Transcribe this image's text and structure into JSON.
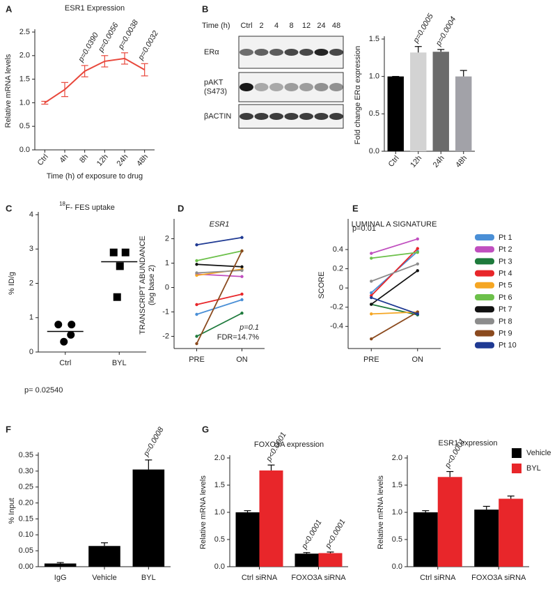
{
  "blot": {
    "panel": "B",
    "time_label": "Time (h)",
    "lanes": [
      "Ctrl",
      "2",
      "4",
      "8",
      "12",
      "24",
      "48"
    ],
    "rows": [
      [
        "ERα"
      ],
      [
        "pAKT",
        "(S473)"
      ],
      [
        "βACTIN"
      ]
    ]
  },
  "chart_data": [
    {
      "panel": "A",
      "type": "line",
      "title": "ESR1 Expression",
      "x_label": "Time (h) of exposure to drug",
      "y_label": "Relative mRNA levels",
      "categories": [
        "Ctrl",
        "4h",
        "8h",
        "12h",
        "24h",
        "48h"
      ],
      "values": [
        1.0,
        1.28,
        1.67,
        1.88,
        1.94,
        1.7
      ],
      "errors": [
        0.03,
        0.15,
        0.12,
        0.12,
        0.12,
        0.13
      ],
      "annotations": [
        null,
        null,
        "p=0.0390",
        "p=0.0056",
        "p=0.0038",
        "p=0.0032"
      ],
      "color": "#e8473b",
      "ylim": [
        0,
        2.5
      ],
      "yticks": [
        {
          "value": 0,
          "label": "0.0"
        },
        0.5,
        {
          "value": 1,
          "label": "1.0"
        },
        1.5,
        {
          "value": 2,
          "label": "2.0"
        },
        2.5
      ]
    },
    {
      "type": "bar",
      "y_label": "Fold change ERα expression",
      "categories": [
        "Ctrl",
        "12h",
        "24h",
        "48h"
      ],
      "values": [
        1.0,
        1.32,
        1.33,
        1.0
      ],
      "errors": [
        0,
        0.08,
        0.03,
        0.08
      ],
      "annotations": [
        null,
        "p=0.0005",
        "p=0.0004",
        null
      ],
      "colors": [
        "#000000",
        "#d3d3d3",
        "#6b6b6b",
        "#a2a2a8"
      ],
      "ylim": [
        0,
        1.5
      ],
      "yticks": [
        {
          "value": 0,
          "label": "0.0"
        },
        0.5,
        {
          "value": 1,
          "label": "1.0"
        },
        1.5
      ]
    },
    {
      "panel": "C",
      "type": "scatter",
      "title_sup": "18",
      "title": "F- FES uptake",
      "y_label": "% ID/g",
      "categories": [
        "Ctrl",
        "BYL"
      ],
      "values": [
        [
          0.8,
          0.8,
          0.5,
          0.3
        ],
        [
          2.9,
          2.9,
          2.5,
          1.6
        ]
      ],
      "medians": [
        0.6,
        2.63
      ],
      "markers": [
        "circle",
        "square"
      ],
      "color": "#000000",
      "annotation": "p= 0.02540",
      "ylim": [
        0,
        4
      ],
      "yticks": [
        0,
        1,
        2,
        3,
        4
      ]
    },
    {
      "panel": "D",
      "type": "paired",
      "title": "ESR1",
      "y_label": [
        "TRANSCRIPT ABUNDANCE",
        "(log base 2)"
      ],
      "categories": [
        "PRE",
        "ON"
      ],
      "series": [
        {
          "color": "#4a8fd6",
          "values": [
            -1.1,
            -0.5
          ]
        },
        {
          "color": "#c04fbf",
          "values": [
            0.55,
            0.45
          ]
        },
        {
          "color": "#1e7a3c",
          "values": [
            -2.0,
            -1.05
          ]
        },
        {
          "color": "#e8262a",
          "values": [
            -0.7,
            -0.27
          ]
        },
        {
          "color": "#f5a623",
          "values": [
            0.5,
            0.75
          ]
        },
        {
          "color": "#6cc04a",
          "values": [
            1.1,
            1.5
          ]
        },
        {
          "color": "#111111",
          "values": [
            0.95,
            0.85
          ]
        },
        {
          "color": "#8c8c8c",
          "values": [
            0.6,
            0.7
          ]
        },
        {
          "color": "#8b4a1e",
          "values": [
            -2.3,
            1.5
          ]
        },
        {
          "color": "#1f3a93",
          "values": [
            1.75,
            2.05
          ]
        }
      ],
      "annotations": [
        "p=0.1",
        "FDR=14.7%"
      ],
      "ylim": [
        -2.5,
        2.7
      ],
      "yticks": [
        -2,
        -1,
        0,
        1,
        2
      ]
    },
    {
      "panel": "E",
      "type": "paired",
      "title": "LUMINAL A SIGNATURE",
      "y_label": [
        "SCORE"
      ],
      "categories": [
        "PRE",
        "ON"
      ],
      "series": [
        {
          "name": "Pt 1",
          "color": "#4a8fd6",
          "values": [
            -0.05,
            0.38
          ]
        },
        {
          "name": "Pt 2",
          "color": "#c04fbf",
          "values": [
            0.36,
            0.51
          ]
        },
        {
          "name": "Pt 3",
          "color": "#1e7a3c",
          "values": [
            -0.17,
            -0.28
          ]
        },
        {
          "name": "Pt 4",
          "color": "#e8262a",
          "values": [
            -0.08,
            0.41
          ]
        },
        {
          "name": "Pt 5",
          "color": "#f5a623",
          "values": [
            -0.27,
            -0.25
          ]
        },
        {
          "name": "Pt 6",
          "color": "#6cc04a",
          "values": [
            0.31,
            0.37
          ]
        },
        {
          "name": "Pt 7",
          "color": "#111111",
          "values": [
            -0.17,
            0.18
          ]
        },
        {
          "name": "Pt 8",
          "color": "#8c8c8c",
          "values": [
            0.07,
            0.25
          ]
        },
        {
          "name": "Pt 9",
          "color": "#8b4a1e",
          "values": [
            -0.53,
            -0.25
          ]
        },
        {
          "name": "Pt 10",
          "color": "#1f3a93",
          "values": [
            -0.1,
            -0.27
          ]
        }
      ],
      "annotations": [
        "p=0.01"
      ],
      "ylim": [
        -0.63,
        0.69
      ],
      "yticks": [
        0.4,
        0.2,
        0,
        -0.2,
        -0.4
      ]
    },
    {
      "panel": "F",
      "type": "bar",
      "y_label": "% Input",
      "categories": [
        "IgG",
        "Vehicle",
        "BYL"
      ],
      "values": [
        0.01,
        0.065,
        0.305
      ],
      "errors": [
        0.003,
        0.01,
        0.03
      ],
      "annotations": [
        null,
        null,
        "p=0.0008"
      ],
      "colors": [
        "#000000",
        "#000000",
        "#000000"
      ],
      "ylim": [
        0,
        0.35
      ],
      "yticks": [
        {
          "value": 0,
          "label": "0.00"
        },
        0.05,
        {
          "value": 0.1,
          "label": "0.10"
        },
        0.15,
        {
          "value": 0.2,
          "label": "0.20"
        },
        0.25,
        {
          "value": 0.3,
          "label": "0.30"
        },
        0.35
      ]
    },
    {
      "panel": "G",
      "type": "grouped",
      "title": "FOXO3A expression",
      "y_label": "Relative mRNA levels",
      "categories": [
        "Ctrl siRNA",
        "FOXO3A siRNA"
      ],
      "series": [
        {
          "color": "#000000",
          "values": [
            1.0,
            0.24
          ],
          "errors": [
            0.03,
            0.02
          ],
          "annotations": [
            null,
            "p<0.0001"
          ]
        },
        {
          "color": "#e8262a",
          "values": [
            1.77,
            0.25
          ],
          "errors": [
            0.1,
            0.02
          ],
          "annotations": [
            "p<0.0001",
            "p<0.0001"
          ]
        }
      ],
      "ylim": [
        0,
        2.0
      ],
      "yticks": [
        {
          "value": 0,
          "label": "0.0"
        },
        0.5,
        {
          "value": 1,
          "label": "1.0"
        },
        1.5,
        {
          "value": 2,
          "label": "2.0"
        }
      ]
    },
    {
      "type": "grouped",
      "title": "ESR1 expression",
      "y_label": "Relative mRNA levels",
      "categories": [
        "Ctrl siRNA",
        "FOXO3A siRNA"
      ],
      "series": [
        {
          "name": "Vehicle",
          "color": "#000000",
          "values": [
            1.0,
            1.05
          ],
          "errors": [
            0.03,
            0.06
          ],
          "annotations": [
            null,
            null
          ]
        },
        {
          "name": "BYL",
          "color": "#e8262a",
          "values": [
            1.65,
            1.25
          ],
          "errors": [
            0.1,
            0.05
          ],
          "annotations": [
            "p<0.0001",
            null
          ]
        }
      ],
      "ylim": [
        0,
        2.0
      ],
      "yticks": [
        {
          "value": 0,
          "label": "0.0"
        },
        0.5,
        {
          "value": 1,
          "label": "1.0"
        },
        1.5,
        {
          "value": 2,
          "label": "2.0"
        }
      ]
    }
  ]
}
